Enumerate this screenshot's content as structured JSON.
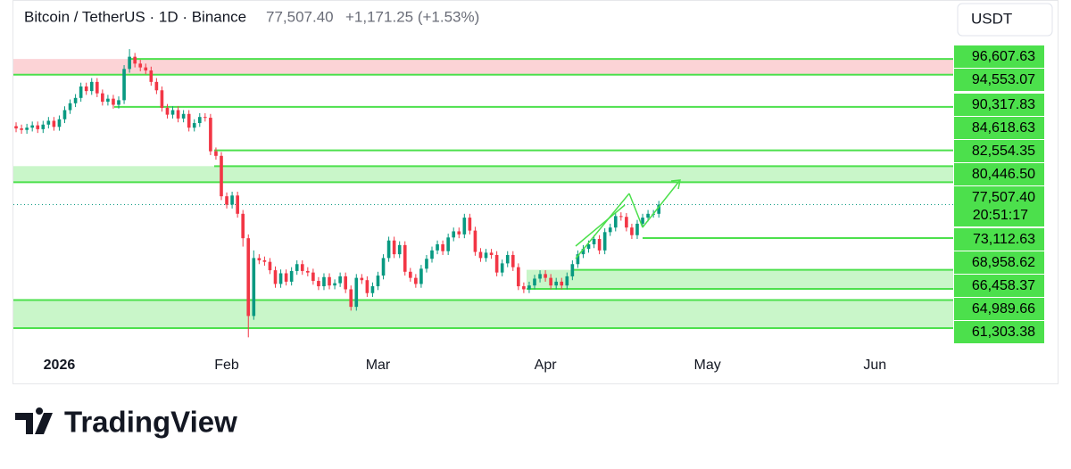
{
  "header": {
    "symbol": "Bitcoin / TetherUS · 1D · Binance",
    "price": "77,507.40",
    "change": "+1,171.25 (+1.53%)"
  },
  "currency": "USDT",
  "brand": "TradingView",
  "chart_data": {
    "type": "candlestick",
    "up_color": "#089981",
    "down_color": "#f23645",
    "level_color": "#4ce04c",
    "xlim": [
      -0.5,
      173.5
    ],
    "ylim": [
      57800,
      100600
    ],
    "xticks": [
      {
        "value": 8,
        "label": "2026"
      },
      {
        "value": 39,
        "label": "Feb"
      },
      {
        "value": 67,
        "label": "Mar"
      },
      {
        "value": 98,
        "label": "Apr"
      },
      {
        "value": 128,
        "label": "May"
      },
      {
        "value": 159,
        "label": "Jun"
      }
    ],
    "levels": [
      {
        "value": 96607.63,
        "label": "96,607.63"
      },
      {
        "value": 94553.07,
        "label": "94,553.07"
      },
      {
        "value": 90317.83,
        "label": "90,317.83"
      },
      {
        "value": 84618.63,
        "label": "84,618.63"
      },
      {
        "value": 82554.35,
        "label": "82,554.35"
      },
      {
        "value": 80446.5,
        "label": "80,446.50"
      },
      {
        "value": 77507.4,
        "label": "77,507.40"
      },
      {
        "value": 73112.63,
        "label": "73,112.63"
      },
      {
        "value": 68958.62,
        "label": "68,958.62"
      },
      {
        "value": 66458.37,
        "label": "66,458.37"
      },
      {
        "value": 64989.66,
        "label": "64,989.66"
      },
      {
        "value": 61303.38,
        "label": "61,303.38"
      }
    ],
    "countdown": "20:51:17",
    "open": [
      87800,
      87500,
      87300,
      87600,
      87900,
      87400,
      88000,
      88500,
      87700,
      88700,
      89900,
      90800,
      91500,
      93000,
      92400,
      93600,
      92100,
      91000,
      91400,
      90600,
      91200,
      95300,
      96900,
      96000,
      95500,
      95100,
      93600,
      92500,
      90200,
      89300,
      89900,
      88800,
      89400,
      87600,
      88200,
      89000,
      88900,
      84500,
      83900,
      78600,
      77500,
      78700,
      76300,
      73100,
      62900,
      70500,
      70200,
      70000,
      68900,
      67100,
      68500,
      67400,
      68800,
      69700,
      68800,
      68600,
      67500,
      66800,
      68000,
      66900,
      67200,
      68100,
      66400,
      64100,
      67900,
      67600,
      65900,
      66800,
      68200,
      70500,
      72800,
      71000,
      72200,
      68700,
      67900,
      67100,
      69100,
      70400,
      71500,
      72300,
      71400,
      73200,
      74000,
      73600,
      75800,
      74100,
      71300,
      70500,
      71200,
      70900,
      68600,
      69800,
      70900,
      69300,
      66800,
      66400,
      66900,
      67800,
      68400,
      67900,
      66900,
      67400,
      66900,
      68100,
      69700,
      71000,
      71700,
      72300,
      73000,
      71500,
      73900,
      74500,
      76000,
      75900,
      74500,
      73500,
      75000,
      75800,
      76300,
      76300
    ],
    "high": [
      88300,
      88000,
      88100,
      88400,
      88400,
      88500,
      89000,
      89000,
      89200,
      90400,
      91300,
      92000,
      93500,
      93500,
      94100,
      94100,
      92600,
      91900,
      91900,
      91700,
      95800,
      97900,
      97400,
      96500,
      96000,
      95600,
      94100,
      93000,
      90700,
      90400,
      90400,
      89900,
      89900,
      88700,
      89500,
      89500,
      89400,
      85000,
      84400,
      79100,
      79200,
      79200,
      76800,
      73600,
      71500,
      71000,
      70700,
      70500,
      69400,
      69000,
      69000,
      69300,
      70200,
      70200,
      69300,
      69100,
      68000,
      68500,
      68500,
      67700,
      68600,
      68600,
      66900,
      68400,
      68400,
      68100,
      67300,
      68700,
      71000,
      73300,
      73300,
      72700,
      72700,
      69200,
      68400,
      69600,
      70900,
      72000,
      72800,
      72800,
      73700,
      74500,
      74500,
      76300,
      76300,
      74600,
      71800,
      71700,
      71700,
      71400,
      70300,
      71400,
      71400,
      69800,
      67300,
      67400,
      68300,
      68900,
      68900,
      68400,
      67900,
      67900,
      68600,
      70200,
      71500,
      72200,
      72800,
      73500,
      73500,
      74400,
      75000,
      76500,
      76500,
      76400,
      75000,
      75500,
      76300,
      76800,
      76800,
      78000
    ],
    "low": [
      87000,
      86800,
      86800,
      87100,
      86900,
      86900,
      87500,
      87200,
      87200,
      88200,
      89400,
      90300,
      91000,
      91900,
      91900,
      91600,
      90500,
      90500,
      90100,
      90100,
      90700,
      94800,
      95500,
      95000,
      94600,
      93100,
      92000,
      89700,
      88800,
      88800,
      88300,
      88300,
      87100,
      87100,
      87700,
      88400,
      84000,
      83400,
      78100,
      77000,
      77000,
      75800,
      72000,
      60100,
      62400,
      69700,
      69500,
      68400,
      66600,
      66600,
      66900,
      66900,
      68300,
      68300,
      68100,
      67000,
      66300,
      66300,
      66400,
      66400,
      66700,
      65900,
      63600,
      63600,
      67100,
      65400,
      65400,
      66300,
      67700,
      70000,
      70500,
      70500,
      68200,
      67400,
      66600,
      66600,
      68600,
      69900,
      71000,
      70900,
      70900,
      72700,
      73100,
      73100,
      73600,
      70800,
      70000,
      70000,
      70400,
      68100,
      68100,
      69300,
      68800,
      66300,
      65900,
      65900,
      66400,
      67300,
      67400,
      66400,
      66400,
      66400,
      66400,
      67600,
      69200,
      70500,
      71200,
      71800,
      71000,
      71000,
      73400,
      74000,
      75400,
      74000,
      73000,
      73000,
      74500,
      75300,
      75800,
      75800
    ],
    "close": [
      87500,
      87300,
      87600,
      87900,
      87400,
      88000,
      88500,
      87700,
      88700,
      89900,
      90800,
      91500,
      93000,
      92400,
      93600,
      92100,
      91000,
      91400,
      90600,
      91200,
      95300,
      96900,
      96000,
      95500,
      95100,
      93600,
      92500,
      90200,
      89300,
      89900,
      88800,
      89400,
      87600,
      88200,
      89000,
      88900,
      84500,
      83900,
      78600,
      77500,
      78700,
      76300,
      73100,
      62900,
      70500,
      70200,
      70000,
      68900,
      67100,
      68500,
      67400,
      68800,
      69700,
      68800,
      68600,
      67500,
      66800,
      68000,
      66900,
      67200,
      68100,
      66400,
      64100,
      67900,
      67600,
      65900,
      66800,
      68200,
      70500,
      72800,
      71000,
      72200,
      68700,
      67900,
      67100,
      69100,
      70400,
      71500,
      72300,
      71400,
      73200,
      74000,
      73600,
      75800,
      74100,
      71300,
      70500,
      71200,
      70900,
      68600,
      69800,
      70900,
      69300,
      66800,
      66400,
      66900,
      67800,
      68400,
      67900,
      66900,
      67400,
      66900,
      68100,
      69700,
      71000,
      71700,
      72300,
      73000,
      71500,
      73900,
      74500,
      76000,
      75900,
      74500,
      73500,
      75000,
      75800,
      76300,
      76300,
      77507.4
    ]
  }
}
